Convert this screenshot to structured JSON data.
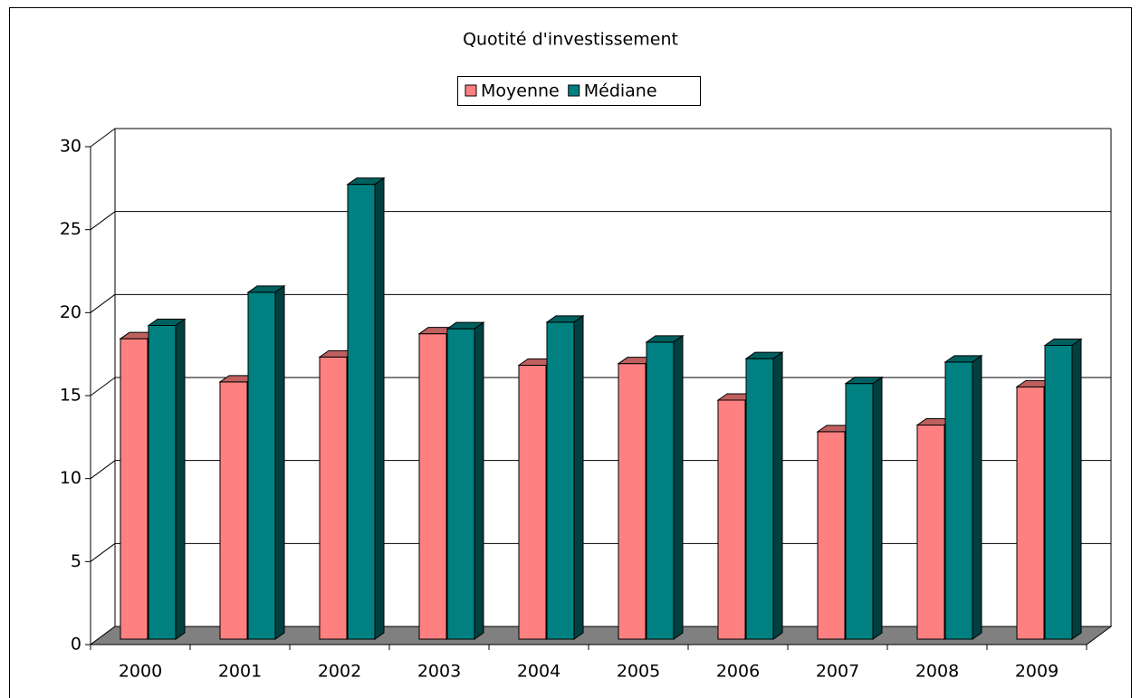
{
  "chart_data": {
    "type": "bar3d",
    "title": "Quotité d'investissement",
    "categories": [
      "2000",
      "2001",
      "2002",
      "2003",
      "2004",
      "2005",
      "2006",
      "2007",
      "2008",
      "2009"
    ],
    "series": [
      {
        "name": "Moyenne",
        "color": "#ff8080",
        "values": [
          18.1,
          15.5,
          17.0,
          18.4,
          16.5,
          16.6,
          14.4,
          12.5,
          12.9,
          15.2
        ]
      },
      {
        "name": "Médiane",
        "color": "#008080",
        "values": [
          18.9,
          20.9,
          27.4,
          18.7,
          19.1,
          17.9,
          16.9,
          15.4,
          16.7,
          17.7
        ]
      }
    ],
    "ylim": [
      0,
      30
    ],
    "yticks": [
      0,
      5,
      10,
      15,
      20,
      25,
      30
    ],
    "grid": true,
    "legend": "top"
  }
}
